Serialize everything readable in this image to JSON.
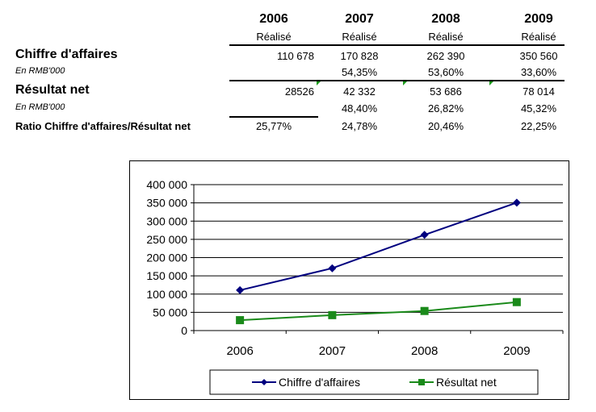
{
  "table": {
    "years": [
      "2006",
      "2007",
      "2008",
      "2009"
    ],
    "status": [
      "Réalisé",
      "Réalisé",
      "Réalisé",
      "Réalisé"
    ],
    "rows": {
      "ca_label": "Chiffre d'affaires",
      "ca_unit": "En RMB'000",
      "ca_values": [
        "110 678",
        "170 828",
        "262 390",
        "350 560"
      ],
      "ca_growth": [
        "",
        "54,35%",
        "53,60%",
        "33,60%"
      ],
      "rn_label": "Résultat net",
      "rn_unit": "En RMB'000",
      "rn_values": [
        "28526",
        "42 332",
        "53 686",
        "78 014"
      ],
      "rn_growth": [
        "",
        "48,40%",
        "26,82%",
        "45,32%"
      ],
      "ratio_label": "Ratio Chiffre d'affaires/Résultat net",
      "ratio_values": [
        "25,77%",
        "24,78%",
        "20,46%",
        "22,25%"
      ]
    }
  },
  "chart_data": {
    "type": "line",
    "categories": [
      "2006",
      "2007",
      "2008",
      "2009"
    ],
    "series": [
      {
        "name": "Chiffre d'affaires",
        "values": [
          110678,
          170828,
          262390,
          350560
        ],
        "color": "#00007f",
        "marker": "diamond"
      },
      {
        "name": "Résultat net",
        "values": [
          28526,
          42332,
          53686,
          78014
        ],
        "color": "#1a8a1a",
        "marker": "square"
      }
    ],
    "ylim": [
      0,
      400000
    ],
    "yticks": [
      0,
      50000,
      100000,
      150000,
      200000,
      250000,
      300000,
      350000,
      400000
    ],
    "ytick_labels": [
      "0",
      "50 000",
      "100 000",
      "150 000",
      "200 000",
      "250 000",
      "300 000",
      "350 000",
      "400 000"
    ],
    "grid": true,
    "legend": "bottom"
  }
}
